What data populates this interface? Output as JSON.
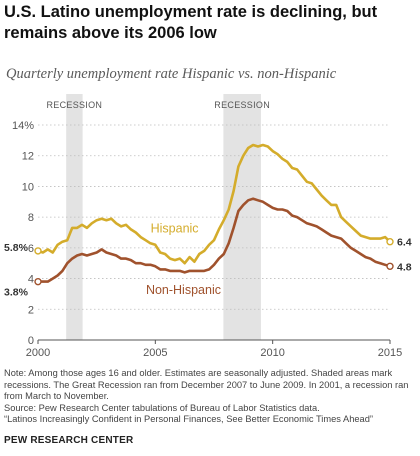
{
  "title": "U.S. Latino unemployment rate is declining, but remains above its 2006 low",
  "subtitle": "Quarterly unemployment rate Hispanic vs. non-Hispanic",
  "notes": {
    "note": "Note: Among those ages 16 and older. Estimates are seasonally adjusted. Shaded areas mark recessions. The Great Recession ran from December 2007 to June 2009. In 2001, a recession ran from March to November.",
    "source": "Source: Pew Research Center tabulations of Bureau of Labor Statistics data.",
    "report": "“Latinos Increasingly Confident in Personal Finances, See Better Economic Times Ahead”"
  },
  "credit": "PEW RESEARCH CENTER",
  "chart_data": {
    "type": "line",
    "xlim": [
      2000,
      2015
    ],
    "ylim": [
      0,
      14
    ],
    "y_ticks": [
      0,
      2,
      4,
      6,
      8,
      10,
      12,
      14
    ],
    "y_tick_labels": [
      "0",
      "2",
      "4",
      "6",
      "8",
      "10",
      "12",
      "14%"
    ],
    "x_ticks": [
      2000,
      2005,
      2010,
      2015
    ],
    "x_tick_labels": [
      "2000",
      "2005",
      "2010",
      "2015"
    ],
    "grid": true,
    "recessions": [
      {
        "label": "RECESSION",
        "start": 2001.2,
        "end": 2001.9
      },
      {
        "label": "",
        "start": 2007.9,
        "end": 2009.5
      }
    ],
    "recession_label": "RECESSION",
    "series": [
      {
        "name": "Hispanic",
        "color": "#d4ac2b",
        "start_label": "5.8%",
        "end_label": "6.4",
        "values": [
          5.8,
          5.7,
          5.9,
          5.7,
          6.2,
          6.4,
          6.5,
          7.3,
          7.3,
          7.5,
          7.3,
          7.6,
          7.8,
          7.9,
          7.8,
          7.9,
          7.6,
          7.4,
          7.5,
          7.2,
          7.0,
          6.7,
          6.5,
          6.3,
          6.2,
          5.7,
          5.6,
          5.3,
          5.2,
          5.3,
          5.0,
          5.4,
          5.1,
          5.6,
          5.8,
          6.2,
          6.5,
          7.2,
          7.8,
          8.5,
          9.7,
          11.3,
          12.0,
          12.5,
          12.7,
          12.6,
          12.7,
          12.6,
          12.3,
          12.1,
          11.8,
          11.6,
          11.2,
          11.1,
          10.7,
          10.3,
          10.2,
          9.8,
          9.4,
          9.1,
          8.8,
          8.8,
          8.0,
          7.7,
          7.4,
          7.1,
          6.8,
          6.7,
          6.6,
          6.6,
          6.6,
          6.7,
          6.4
        ]
      },
      {
        "name": "Non-Hispanic",
        "color": "#a0522d",
        "start_label": "3.8%",
        "end_label": "4.8",
        "values": [
          3.8,
          3.8,
          3.8,
          4.0,
          4.2,
          4.5,
          5.0,
          5.3,
          5.5,
          5.6,
          5.5,
          5.6,
          5.7,
          5.9,
          5.7,
          5.6,
          5.5,
          5.3,
          5.3,
          5.2,
          5.0,
          5.0,
          4.9,
          4.9,
          4.8,
          4.6,
          4.6,
          4.5,
          4.5,
          4.5,
          4.4,
          4.5,
          4.5,
          4.5,
          4.5,
          4.6,
          4.9,
          5.3,
          5.6,
          6.3,
          7.3,
          8.4,
          8.8,
          9.1,
          9.2,
          9.1,
          9.0,
          8.8,
          8.6,
          8.5,
          8.5,
          8.4,
          8.1,
          8.0,
          7.8,
          7.6,
          7.5,
          7.4,
          7.2,
          7.0,
          6.8,
          6.7,
          6.6,
          6.3,
          6.0,
          5.8,
          5.6,
          5.4,
          5.3,
          5.1,
          5.0,
          4.9,
          4.8
        ]
      }
    ]
  }
}
